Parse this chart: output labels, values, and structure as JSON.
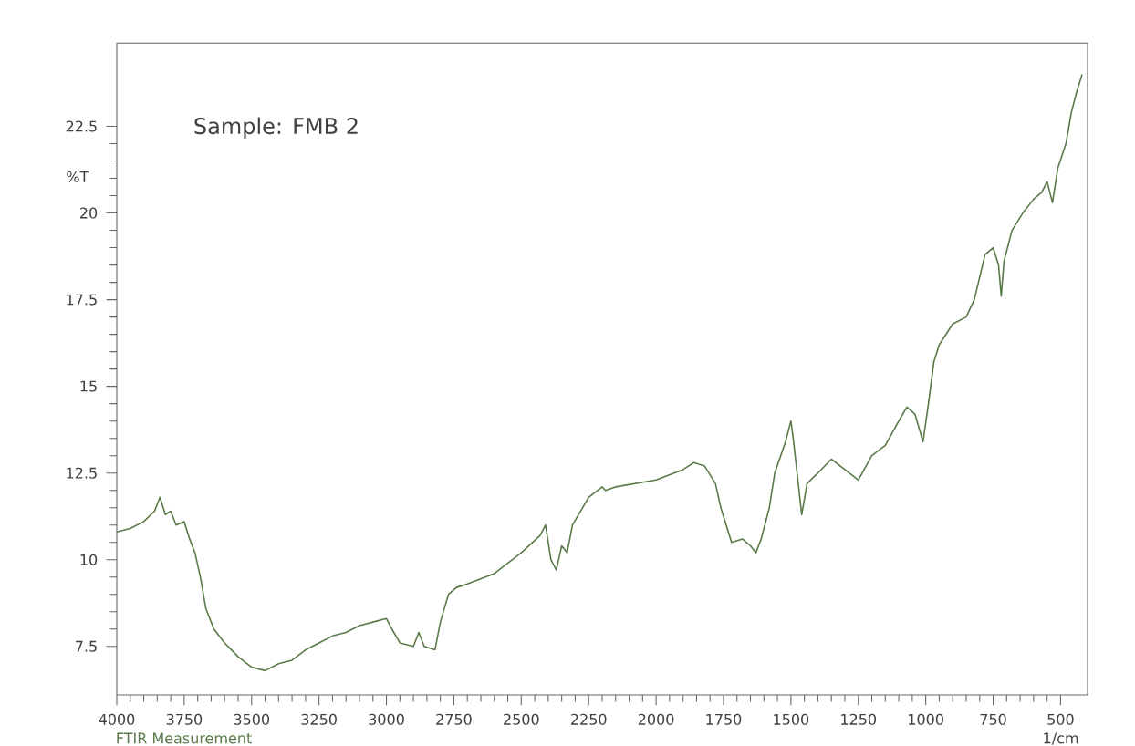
{
  "chart_data": {
    "type": "line",
    "title": "Sample: FMB 2",
    "xlabel": "1/cm",
    "ylabel": "%T",
    "annotations": [
      "FTIR Measurement"
    ],
    "xlim": [
      4000,
      400
    ],
    "ylim": [
      6.1,
      24.9
    ],
    "xticks": [
      4000,
      3750,
      3500,
      3250,
      3000,
      2750,
      2500,
      2250,
      2000,
      1750,
      1500,
      1250,
      1000,
      750,
      500
    ],
    "yticks": [
      7.5,
      10,
      12.5,
      15,
      17.5,
      20,
      22.5
    ],
    "x": [
      4000,
      3950,
      3900,
      3860,
      3840,
      3820,
      3800,
      3780,
      3750,
      3730,
      3710,
      3690,
      3670,
      3640,
      3600,
      3550,
      3500,
      3450,
      3400,
      3350,
      3300,
      3250,
      3200,
      3150,
      3100,
      3050,
      3000,
      2980,
      2950,
      2900,
      2880,
      2860,
      2820,
      2800,
      2770,
      2740,
      2700,
      2600,
      2500,
      2430,
      2410,
      2390,
      2370,
      2350,
      2330,
      2310,
      2250,
      2200,
      2188,
      2150,
      2000,
      1900,
      1860,
      1820,
      1780,
      1760,
      1720,
      1680,
      1650,
      1630,
      1610,
      1580,
      1560,
      1520,
      1500,
      1490,
      1460,
      1440,
      1400,
      1350,
      1300,
      1250,
      1200,
      1150,
      1100,
      1070,
      1040,
      1010,
      990,
      970,
      950,
      900,
      850,
      820,
      780,
      750,
      730,
      720,
      710,
      680,
      640,
      600,
      570,
      550,
      530,
      510,
      480,
      460,
      440,
      420
    ],
    "series": [
      {
        "color": "#5a7a4a",
        "values": [
          10.8,
          10.9,
          11.1,
          11.4,
          11.8,
          11.3,
          11.4,
          11.0,
          11.1,
          10.6,
          10.2,
          9.5,
          8.6,
          8.0,
          7.6,
          7.2,
          6.9,
          6.8,
          7.0,
          7.1,
          7.4,
          7.6,
          7.8,
          7.9,
          8.1,
          8.2,
          8.3,
          8.0,
          7.6,
          7.5,
          7.9,
          7.5,
          7.4,
          8.2,
          9.0,
          9.2,
          9.3,
          9.6,
          10.2,
          10.7,
          11.0,
          10.0,
          9.7,
          10.4,
          10.2,
          11.0,
          11.8,
          12.1,
          12.0,
          12.1,
          12.3,
          12.6,
          12.8,
          12.7,
          12.2,
          11.5,
          10.5,
          10.6,
          10.4,
          10.2,
          10.6,
          11.5,
          12.5,
          13.4,
          14.0,
          13.4,
          11.3,
          12.2,
          12.5,
          12.9,
          12.6,
          12.3,
          13.0,
          13.3,
          14.0,
          14.4,
          14.2,
          13.4,
          14.5,
          15.7,
          16.2,
          16.8,
          17.0,
          17.5,
          18.8,
          19.0,
          18.5,
          17.6,
          18.6,
          19.5,
          20.0,
          20.4,
          20.6,
          20.9,
          20.3,
          21.3,
          22.0,
          22.9,
          23.5,
          24.0
        ]
      }
    ]
  }
}
